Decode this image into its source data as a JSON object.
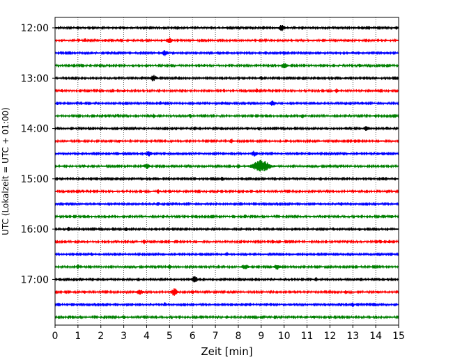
{
  "chart_data": {
    "type": "line",
    "title": "",
    "xlabel": "Zeit  [min]",
    "ylabel": "UTC (Lokalzeit = UTC + 01:00)",
    "xlim": [
      0,
      15
    ],
    "x_ticks": [
      "0",
      "1",
      "2",
      "3",
      "4",
      "5",
      "6",
      "7",
      "8",
      "9",
      "10",
      "11",
      "12",
      "13",
      "14",
      "15"
    ],
    "y_ticks": [
      "12:00",
      "13:00",
      "14:00",
      "15:00",
      "16:00",
      "17:00"
    ],
    "grid": {
      "x": true,
      "y": false,
      "style": "dotted"
    },
    "legend": "none",
    "colors": [
      "#000000",
      "#ff0000",
      "#0000ff",
      "#008000"
    ],
    "series": [
      {
        "start": "12:00",
        "color": "#000000",
        "events": [
          {
            "t": 1.0,
            "amp": 0.3
          },
          {
            "t": 3.0,
            "amp": 0.3
          },
          {
            "t": 9.1,
            "amp": 0.35
          },
          {
            "t": 9.9,
            "amp": 0.7
          },
          {
            "t": 10.8,
            "amp": 0.35
          },
          {
            "t": 14.9,
            "amp": 0.35
          }
        ]
      },
      {
        "start": "12:15",
        "color": "#ff0000",
        "events": [
          {
            "t": 1.3,
            "amp": 0.4
          },
          {
            "t": 2.2,
            "amp": 0.25
          },
          {
            "t": 5.0,
            "amp": 0.6
          },
          {
            "t": 9.2,
            "amp": 0.45
          },
          {
            "t": 12.8,
            "amp": 0.3
          }
        ]
      },
      {
        "start": "12:30",
        "color": "#0000ff",
        "events": [
          {
            "t": 1.6,
            "amp": 0.3
          },
          {
            "t": 2.3,
            "amp": 0.3
          },
          {
            "t": 4.8,
            "amp": 0.6
          },
          {
            "t": 9.2,
            "amp": 0.3
          },
          {
            "t": 10.0,
            "amp": 0.45
          },
          {
            "t": 13.0,
            "amp": 0.35
          },
          {
            "t": 14.5,
            "amp": 0.25
          }
        ]
      },
      {
        "start": "12:45",
        "color": "#008000",
        "events": [
          {
            "t": 1.2,
            "amp": 0.45
          },
          {
            "t": 4.0,
            "amp": 0.3
          },
          {
            "t": 6.5,
            "amp": 0.3
          },
          {
            "t": 10.0,
            "amp": 0.65
          },
          {
            "t": 13.3,
            "amp": 0.35
          }
        ]
      },
      {
        "start": "13:00",
        "color": "#000000",
        "events": [
          {
            "t": 3.8,
            "amp": 0.3
          },
          {
            "t": 4.3,
            "amp": 0.75
          },
          {
            "t": 9.0,
            "amp": 0.45
          },
          {
            "t": 11.5,
            "amp": 0.3
          },
          {
            "t": 12.7,
            "amp": 0.3
          },
          {
            "t": 14.0,
            "amp": 0.3
          }
        ]
      },
      {
        "start": "13:15",
        "color": "#ff0000",
        "events": [
          {
            "t": 0.3,
            "amp": 0.3
          },
          {
            "t": 3.0,
            "amp": 0.3
          },
          {
            "t": 8.8,
            "amp": 0.45
          },
          {
            "t": 12.3,
            "amp": 0.5
          },
          {
            "t": 14.0,
            "amp": 0.25
          }
        ]
      },
      {
        "start": "13:30",
        "color": "#0000ff",
        "events": [
          {
            "t": 0.1,
            "amp": 0.3
          },
          {
            "t": 4.6,
            "amp": 0.4
          },
          {
            "t": 7.3,
            "amp": 0.35
          },
          {
            "t": 9.5,
            "amp": 0.55
          },
          {
            "t": 11.3,
            "amp": 0.3
          },
          {
            "t": 13.4,
            "amp": 0.3
          }
        ]
      },
      {
        "start": "13:45",
        "color": "#008000",
        "events": [
          {
            "t": 2.2,
            "amp": 0.3
          },
          {
            "t": 4.3,
            "amp": 0.45
          },
          {
            "t": 5.9,
            "amp": 0.45
          },
          {
            "t": 10.8,
            "amp": 0.45
          },
          {
            "t": 14.0,
            "amp": 0.35
          }
        ]
      },
      {
        "start": "14:00",
        "color": "#000000",
        "events": [
          {
            "t": 6.1,
            "amp": 0.35
          },
          {
            "t": 8.4,
            "amp": 0.3
          },
          {
            "t": 8.9,
            "amp": 0.4
          },
          {
            "t": 12.7,
            "amp": 0.35
          },
          {
            "t": 13.6,
            "amp": 0.55
          },
          {
            "t": 14.5,
            "amp": 0.35
          }
        ]
      },
      {
        "start": "14:15",
        "color": "#ff0000",
        "events": [
          {
            "t": 2.8,
            "amp": 0.3
          },
          {
            "t": 7.7,
            "amp": 0.5
          },
          {
            "t": 10.1,
            "amp": 0.3
          },
          {
            "t": 13.1,
            "amp": 0.3
          }
        ]
      },
      {
        "start": "14:30",
        "color": "#0000ff",
        "events": [
          {
            "t": 1.0,
            "amp": 0.3
          },
          {
            "t": 4.1,
            "amp": 0.55
          },
          {
            "t": 8.7,
            "amp": 0.6
          },
          {
            "t": 11.1,
            "amp": 0.3
          },
          {
            "t": 14.1,
            "amp": 0.3
          }
        ]
      },
      {
        "start": "14:45",
        "color": "#008000",
        "events": [
          {
            "t": 4.0,
            "amp": 0.6
          },
          {
            "t": 8.0,
            "amp": 0.5
          },
          {
            "t": 9.0,
            "amp": 1.5
          },
          {
            "t": 12.0,
            "amp": 0.35
          }
        ]
      },
      {
        "start": "15:00",
        "color": "#000000",
        "events": [
          {
            "t": 3.8,
            "amp": 0.3
          },
          {
            "t": 7.3,
            "amp": 0.5
          },
          {
            "t": 10.9,
            "amp": 0.3
          },
          {
            "t": 14.3,
            "amp": 0.45
          }
        ]
      },
      {
        "start": "15:15",
        "color": "#ff0000",
        "events": [
          {
            "t": 4.5,
            "amp": 0.45
          },
          {
            "t": 5.0,
            "amp": 0.3
          },
          {
            "t": 8.4,
            "amp": 0.3
          },
          {
            "t": 13.0,
            "amp": 0.35
          }
        ]
      },
      {
        "start": "15:30",
        "color": "#0000ff",
        "events": [
          {
            "t": 1.7,
            "amp": 0.3
          },
          {
            "t": 4.5,
            "amp": 0.45
          },
          {
            "t": 6.8,
            "amp": 0.3
          },
          {
            "t": 11.6,
            "amp": 0.3
          },
          {
            "t": 12.5,
            "amp": 0.35
          }
        ]
      },
      {
        "start": "15:45",
        "color": "#008000",
        "events": [
          {
            "t": 0.5,
            "amp": 0.3
          },
          {
            "t": 3.0,
            "amp": 0.3
          },
          {
            "t": 8.3,
            "amp": 0.45
          },
          {
            "t": 11.8,
            "amp": 0.3
          },
          {
            "t": 14.7,
            "amp": 0.3
          }
        ]
      },
      {
        "start": "16:00",
        "color": "#000000",
        "events": [
          {
            "t": 0.6,
            "amp": 0.45
          },
          {
            "t": 3.1,
            "amp": 0.45
          },
          {
            "t": 4.4,
            "amp": 0.3
          },
          {
            "t": 10.5,
            "amp": 0.3
          },
          {
            "t": 13.3,
            "amp": 0.3
          }
        ]
      },
      {
        "start": "16:15",
        "color": "#ff0000",
        "events": [
          {
            "t": 1.2,
            "amp": 0.3
          },
          {
            "t": 3.9,
            "amp": 0.45
          },
          {
            "t": 9.5,
            "amp": 0.4
          },
          {
            "t": 14.2,
            "amp": 0.45
          },
          {
            "t": 14.6,
            "amp": 0.3
          }
        ]
      },
      {
        "start": "16:30",
        "color": "#0000ff",
        "events": [
          {
            "t": 1.6,
            "amp": 0.3
          },
          {
            "t": 4.7,
            "amp": 0.3
          },
          {
            "t": 7.5,
            "amp": 0.45
          },
          {
            "t": 10.6,
            "amp": 0.3
          }
        ]
      },
      {
        "start": "16:45",
        "color": "#008000",
        "events": [
          {
            "t": 1.0,
            "amp": 0.5
          },
          {
            "t": 4.0,
            "amp": 0.3
          },
          {
            "t": 5.0,
            "amp": 0.5
          },
          {
            "t": 8.3,
            "amp": 0.6
          },
          {
            "t": 9.7,
            "amp": 0.6
          }
        ]
      },
      {
        "start": "17:00",
        "color": "#000000",
        "events": [
          {
            "t": 6.1,
            "amp": 0.7
          },
          {
            "t": 11.4,
            "amp": 0.45
          },
          {
            "t": 13.2,
            "amp": 0.3
          }
        ]
      },
      {
        "start": "17:15",
        "color": "#ff0000",
        "events": [
          {
            "t": 1.3,
            "amp": 0.3
          },
          {
            "t": 3.7,
            "amp": 0.55
          },
          {
            "t": 5.2,
            "amp": 0.9
          },
          {
            "t": 6.0,
            "amp": 0.4
          },
          {
            "t": 12.7,
            "amp": 0.4
          },
          {
            "t": 14.1,
            "amp": 0.3
          }
        ]
      },
      {
        "start": "17:30",
        "color": "#0000ff",
        "events": [
          {
            "t": 4.8,
            "amp": 0.45
          },
          {
            "t": 7.9,
            "amp": 0.3
          },
          {
            "t": 10.3,
            "amp": 0.3
          },
          {
            "t": 13.0,
            "amp": 0.5
          }
        ]
      },
      {
        "start": "17:45",
        "color": "#008000",
        "events": [
          {
            "t": 3.0,
            "amp": 0.45
          },
          {
            "t": 7.5,
            "amp": 0.3
          },
          {
            "t": 11.3,
            "amp": 0.3
          }
        ]
      }
    ]
  }
}
